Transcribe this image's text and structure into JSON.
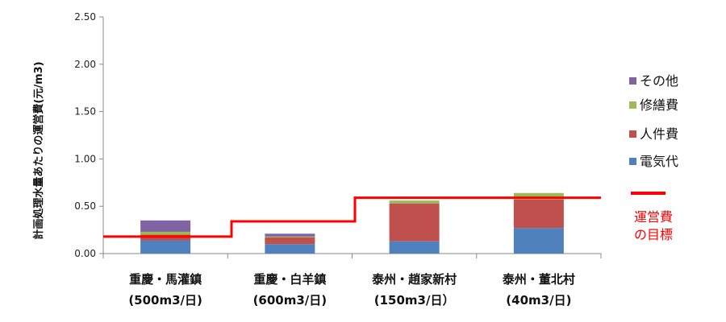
{
  "chart_data": {
    "type": "bar",
    "stacked": true,
    "ylabel": "計画処理水量あたりの運営費(元/m3)",
    "ylim": [
      0,
      2.5
    ],
    "yticks": [
      "0.00",
      "0.50",
      "1.00",
      "1.50",
      "2.00",
      "2.50"
    ],
    "grid": false,
    "legend_position": "right",
    "categories": [
      {
        "line1": "重慶・馬灌鎮",
        "line2": "(500m3/日)"
      },
      {
        "line1": "重慶・白羊鎮",
        "line2": "(600m3/日)"
      },
      {
        "line1": "泰州・趙家新村",
        "line2": "(150m3/日）"
      },
      {
        "line1": "泰州・董北村",
        "line2": "(40m3/日)"
      }
    ],
    "series": [
      {
        "name": "電気代",
        "color": "#4f81bd",
        "values": [
          0.14,
          0.1,
          0.13,
          0.27
        ]
      },
      {
        "name": "人件費",
        "color": "#c0504d",
        "values": [
          0.06,
          0.07,
          0.4,
          0.3
        ]
      },
      {
        "name": "修繕費",
        "color": "#9bbb59",
        "values": [
          0.03,
          0.01,
          0.03,
          0.07
        ]
      },
      {
        "name": "その他",
        "color": "#8064a2",
        "values": [
          0.12,
          0.03,
          0.0,
          0.0
        ]
      }
    ],
    "legend_order": [
      "その他",
      "修繕費",
      "人件費",
      "電気代"
    ],
    "target": {
      "label_line1": "運営費",
      "label_line2": "の目標",
      "color": "#ff0000",
      "values": [
        0.18,
        0.34,
        0.59,
        0.59
      ]
    }
  }
}
